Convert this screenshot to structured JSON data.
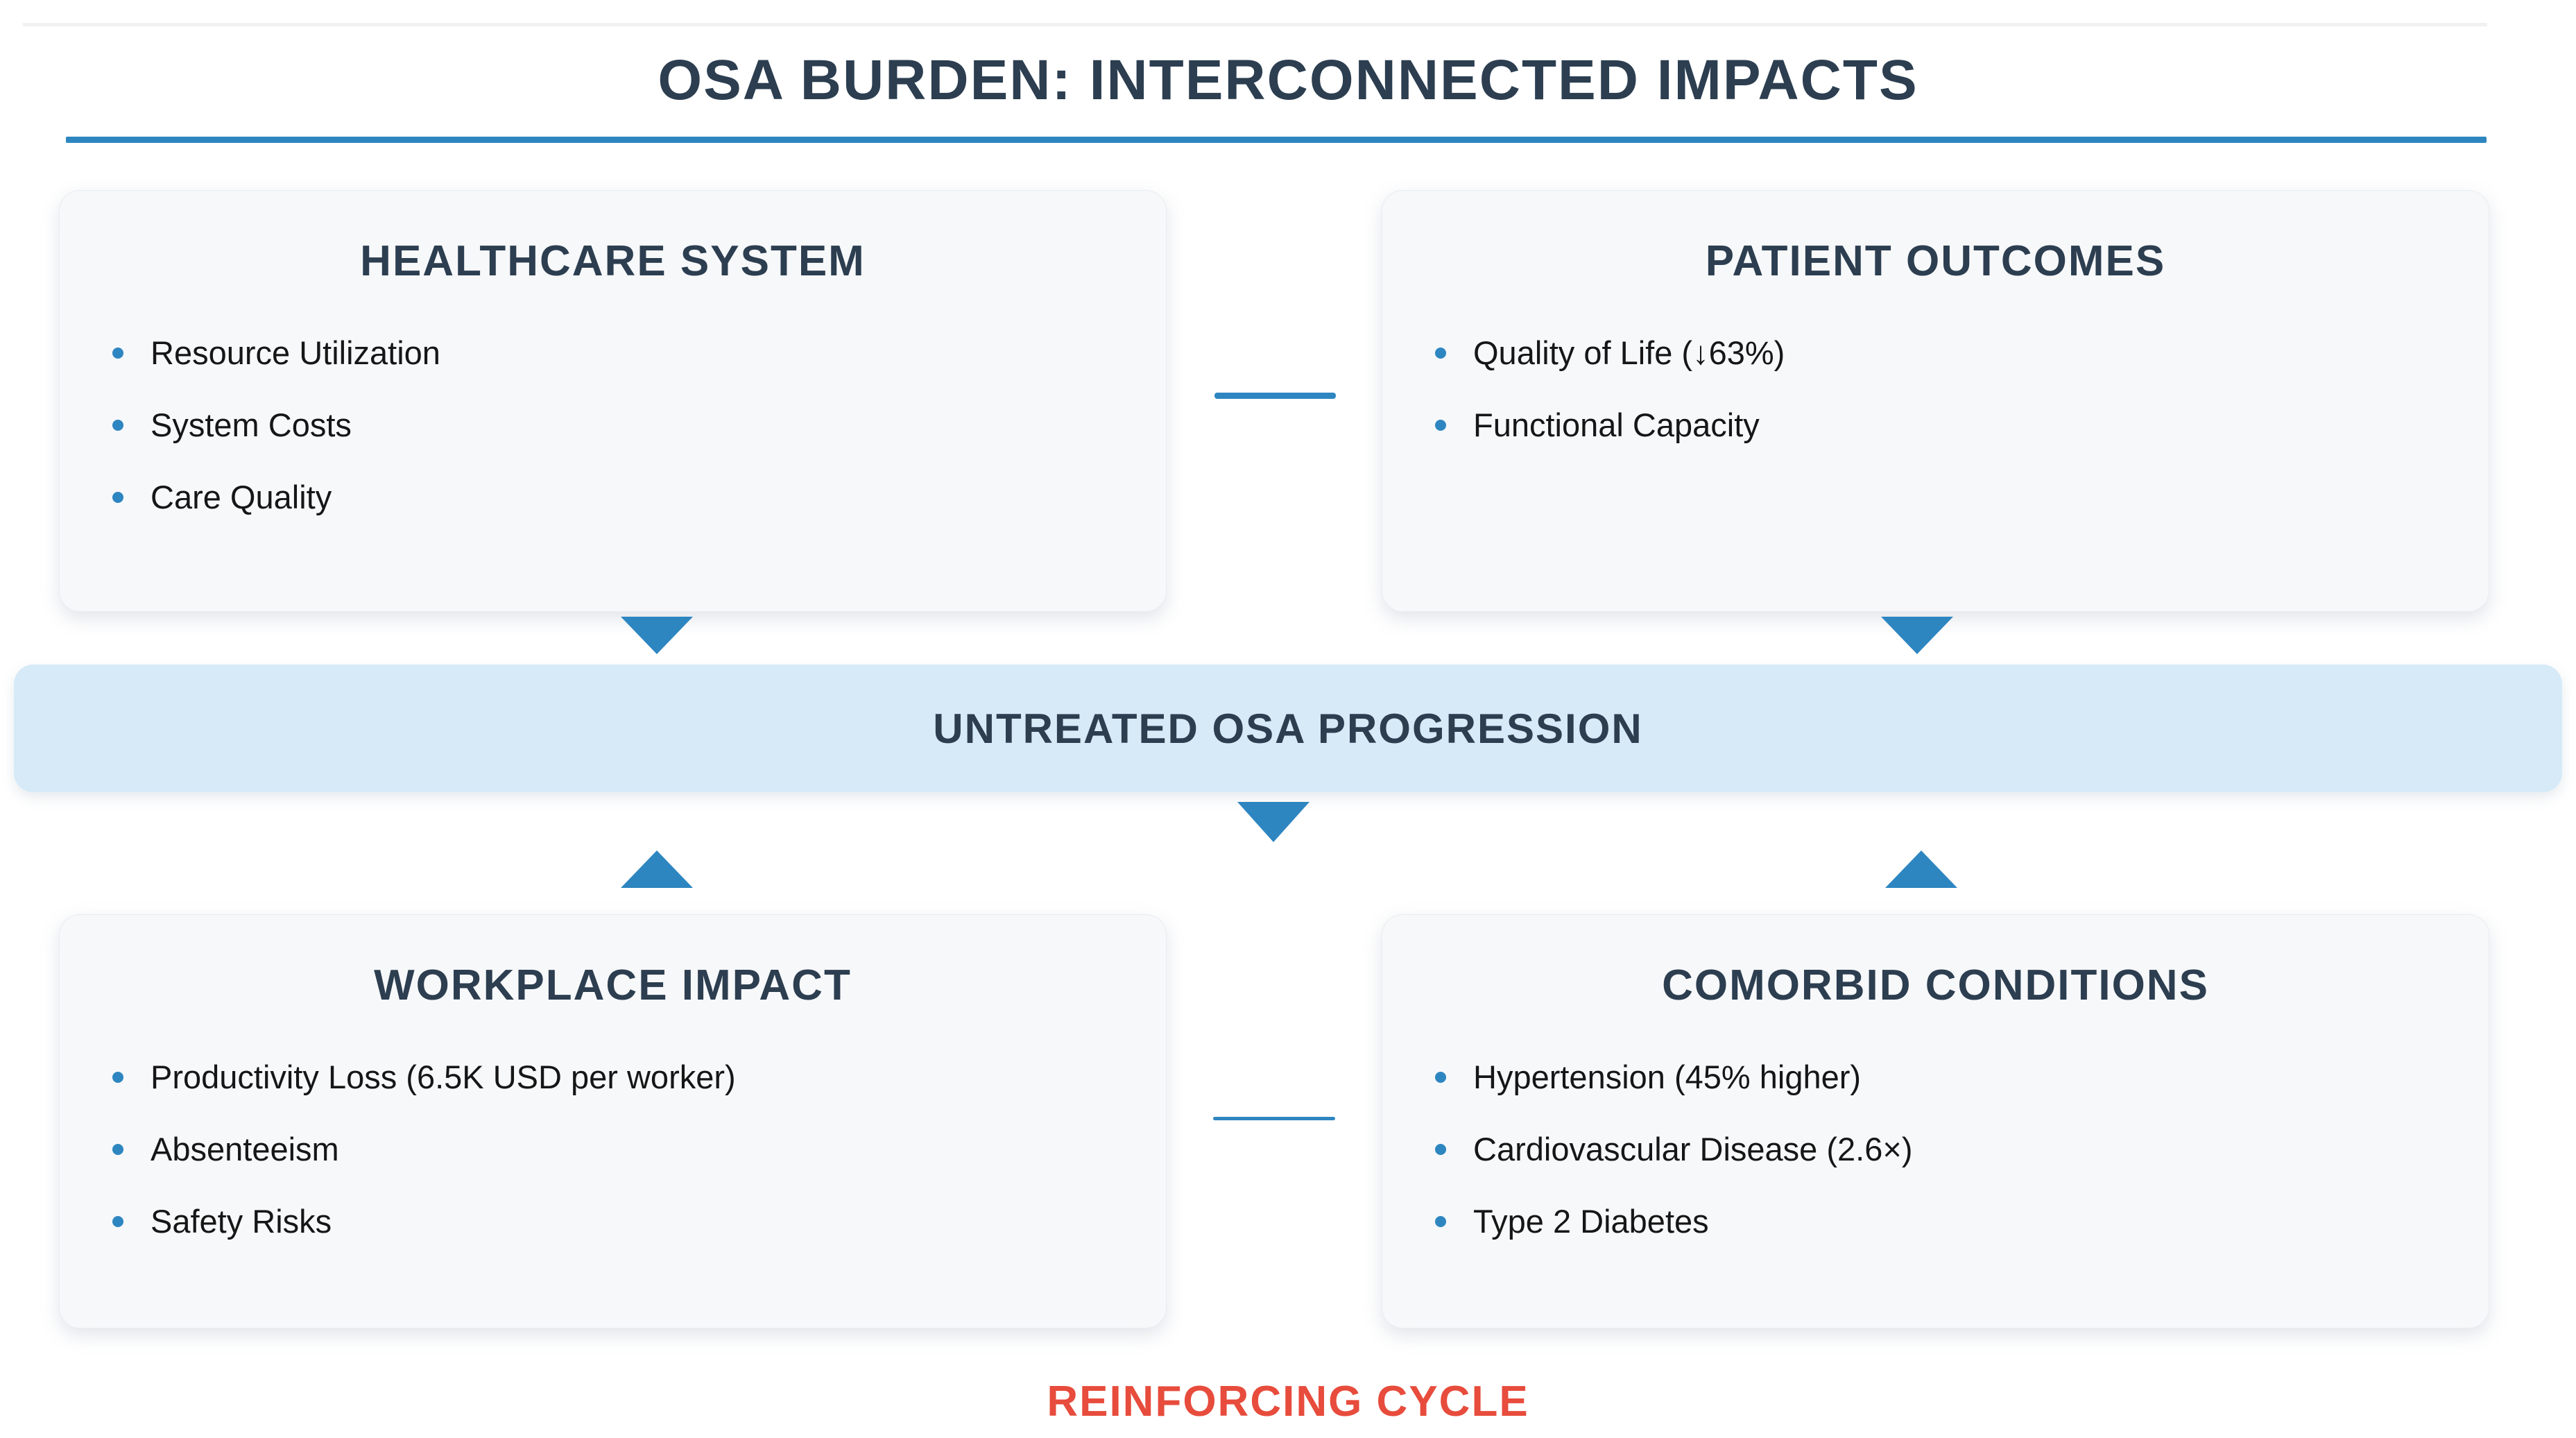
{
  "title": "OSA BURDEN: INTERCONNECTED IMPACTS",
  "colors": {
    "navy": "#2c3e50",
    "accent": "#2e86c1",
    "red": "#e74c3c",
    "barbg": "#d6eaf8",
    "cardbg": "#f7f8fa",
    "cardborder": "#e9edf1",
    "text": "#161616",
    "hairline": "#f0f1f3"
  },
  "boxes": [
    {
      "title": "HEALTHCARE SYSTEM",
      "items": [
        "Resource Utilization",
        "System Costs",
        "Care Quality"
      ]
    },
    {
      "title": "PATIENT OUTCOMES",
      "items": [
        "Quality of Life (↓63%)",
        "Functional Capacity"
      ]
    },
    {
      "title": "WORKPLACE IMPACT",
      "items": [
        "Productivity Loss (6.5K USD per worker)",
        "Absenteeism",
        "Safety Risks"
      ]
    },
    {
      "title": "COMORBID CONDITIONS",
      "items": [
        "Hypertension (45% higher)",
        "Cardiovascular Disease (2.6×)",
        "Type 2 Diabetes"
      ]
    }
  ],
  "center_bar": {
    "label": "UNTREATED OSA PROGRESSION"
  },
  "footer": {
    "label": "REINFORCING CYCLE"
  }
}
